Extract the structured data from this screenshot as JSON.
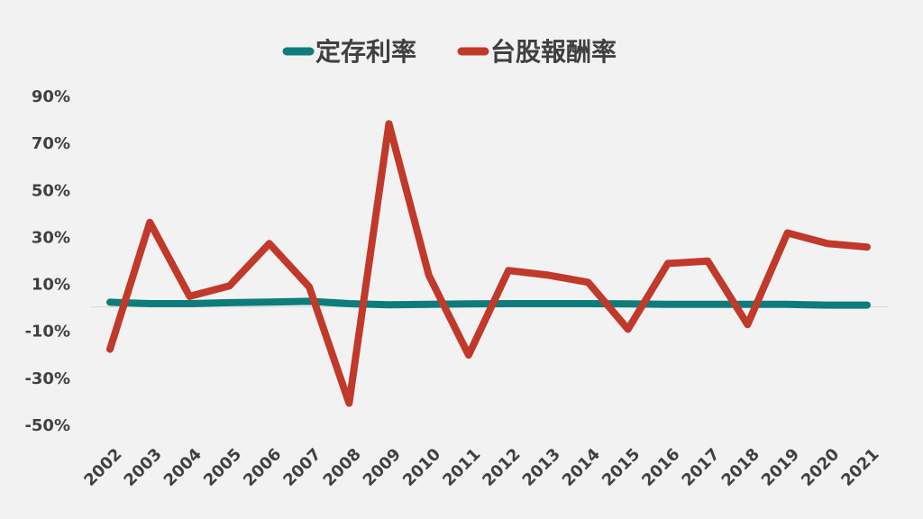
{
  "chart_data": {
    "type": "line",
    "title": "",
    "xlabel": "",
    "ylabel": "",
    "categories": [
      "2002",
      "2003",
      "2004",
      "2005",
      "2006",
      "2007",
      "2008",
      "2009",
      "2010",
      "2011",
      "2012",
      "2013",
      "2014",
      "2015",
      "2016",
      "2017",
      "2018",
      "2019",
      "2020",
      "2021"
    ],
    "ylim": [
      -50,
      90
    ],
    "yticks": [
      "90%",
      "70%",
      "50%",
      "30%",
      "10%",
      "-10%",
      "-30%",
      "-50%"
    ],
    "ytick_values": [
      90,
      70,
      50,
      30,
      10,
      -10,
      -30,
      -50
    ],
    "legend": {
      "position": "top"
    },
    "grid": false,
    "series": [
      {
        "name": "定存利率",
        "color": "#0e7c7b",
        "values": [
          2.0,
          1.4,
          1.4,
          1.8,
          2.1,
          2.4,
          1.4,
          0.9,
          1.1,
          1.3,
          1.4,
          1.4,
          1.4,
          1.3,
          1.1,
          1.1,
          1.1,
          1.1,
          0.8,
          0.8
        ]
      },
      {
        "name": "台股報酬率",
        "color": "#c0392b",
        "values": [
          -18.0,
          36.0,
          4.5,
          9.0,
          27.0,
          8.5,
          -41.0,
          78.0,
          13.5,
          -20.5,
          15.5,
          13.5,
          10.5,
          -9.5,
          18.5,
          19.5,
          -7.5,
          31.5,
          27.0,
          25.5
        ]
      }
    ]
  }
}
